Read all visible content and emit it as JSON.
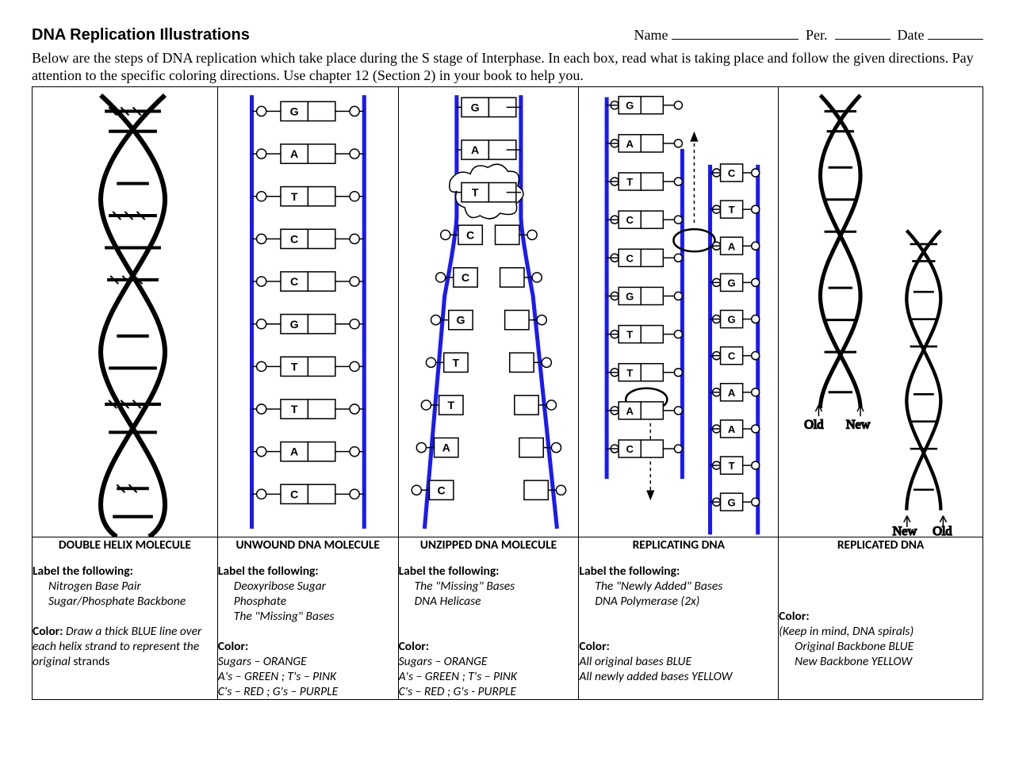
{
  "header": {
    "title": "DNA Replication Illustrations",
    "name_label": "Name",
    "per_label": "Per.",
    "date_label": "Date"
  },
  "intro": "Below are the steps of DNA replication which take place during the S stage of Interphase.  In each box, read what is taking place and follow the given directions.  Pay attention to the specific coloring directions.  Use chapter 12 (Section 2) in your book to help you.",
  "columns": [
    {
      "title": "DOUBLE HELIX MOLECULE",
      "label_heading": "Label the following:",
      "labels": [
        "Nitrogen Base Pair",
        "Sugar/Phosphate Backbone"
      ],
      "color_heading": "Color:",
      "color_text_inline": "Draw a thick BLUE line over each helix strand to represent the original ",
      "color_tail_normal": "strands",
      "color_lines": []
    },
    {
      "title": "UNWOUND DNA MOLECULE",
      "label_heading": "Label the following:",
      "labels": [
        "Deoxyribose Sugar",
        "Phosphate",
        "The \"Missing\" Bases"
      ],
      "color_heading": "Color:",
      "color_lines": [
        "Sugars – ORANGE",
        "A's – GREEN ; T's – PINK",
        "C's – RED ; G's – PURPLE"
      ]
    },
    {
      "title": "UNZIPPED DNA MOLECULE",
      "label_heading": "Label the following:",
      "labels": [
        "The \"Missing\" Bases",
        "DNA Helicase"
      ],
      "color_heading": "Color:",
      "color_lines": [
        "Sugars – ORANGE",
        "A's – GREEN ; T's – PINK",
        "C's – RED ; G's - PURPLE"
      ]
    },
    {
      "title": "REPLICATING DNA",
      "label_heading": "Label the following:",
      "labels": [
        "The \"Newly Added\" Bases",
        "DNA Polymerase (2x)"
      ],
      "color_heading": "Color:",
      "color_lines": [
        "All original bases BLUE",
        "All newly added bases YELLOW"
      ]
    },
    {
      "title": "REPLICATED DNA",
      "label_heading": "",
      "labels": [],
      "color_heading": "Color:",
      "color_lines_italic": [
        "(Keep in mind, DNA spirals)",
        "Original Backbone BLUE",
        "New Backbone YELLOW"
      ]
    }
  ],
  "diagram2_bases": [
    "G",
    "A",
    "T",
    "C",
    "C",
    "G",
    "T",
    "T",
    "A",
    "C"
  ],
  "diagram3_bases": [
    "G",
    "A",
    "T",
    "C",
    "C",
    "G",
    "T",
    "T",
    "A",
    "C"
  ],
  "diagram4_left_bases": [
    "G",
    "A",
    "T",
    "C",
    "C",
    "G",
    "T",
    "T",
    "A",
    "C"
  ],
  "diagram4_right_bases": [
    "C",
    "T",
    "A",
    "G",
    "G",
    "C",
    "A",
    "A",
    "T",
    "G"
  ],
  "diagram5_labels": {
    "old": "Old",
    "new": "New"
  },
  "colors": {
    "backbone_blue": "#1a1af5",
    "black": "#000000"
  }
}
